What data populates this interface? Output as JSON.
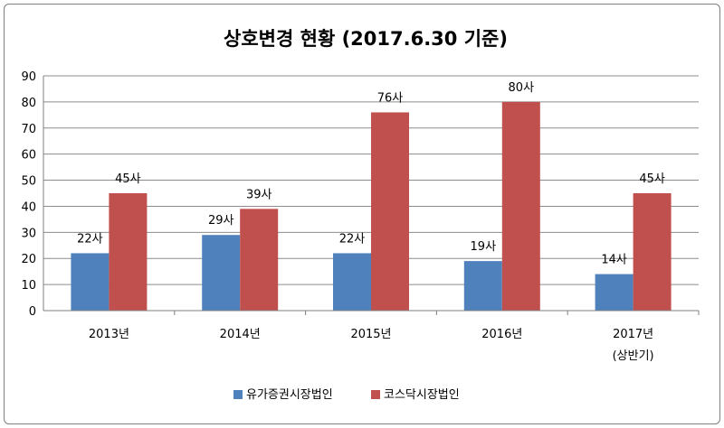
{
  "chart_data": {
    "type": "bar",
    "title": "상호변경 현황 (2017.6.30 기준)",
    "xlabel": "",
    "ylabel": "",
    "categories": [
      [
        "2013년"
      ],
      [
        "2014년"
      ],
      [
        "2015년"
      ],
      [
        "2016년"
      ],
      [
        "2017년",
        "(상반기)"
      ]
    ],
    "series": [
      {
        "name": "유가증권시장법인",
        "color": "#4f81bd",
        "values": [
          22,
          29,
          22,
          19,
          14
        ],
        "labels": [
          "22사",
          "29사",
          "22사",
          "19사",
          "14사"
        ]
      },
      {
        "name": "코스닥시장법인",
        "color": "#c0504d",
        "values": [
          45,
          39,
          76,
          80,
          45
        ],
        "labels": [
          "45사",
          "39사",
          "76사",
          "80사",
          "45사"
        ]
      }
    ],
    "ylim": [
      0,
      90
    ],
    "yticks": [
      0,
      10,
      20,
      30,
      40,
      50,
      60,
      70,
      80,
      90
    ],
    "grid": true,
    "legend": "bottom"
  }
}
